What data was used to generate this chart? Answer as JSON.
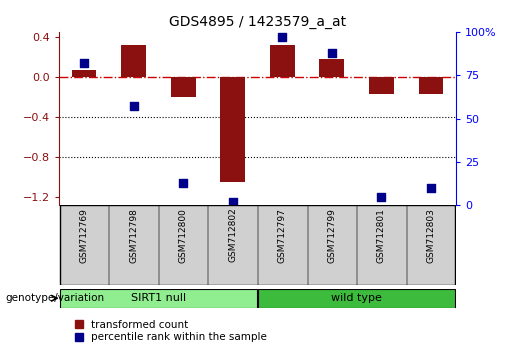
{
  "title": "GDS4895 / 1423579_a_at",
  "samples": [
    "GSM712769",
    "GSM712798",
    "GSM712800",
    "GSM712802",
    "GSM712797",
    "GSM712799",
    "GSM712801",
    "GSM712803"
  ],
  "red_values": [
    0.07,
    0.32,
    -0.2,
    -1.05,
    0.32,
    0.18,
    -0.17,
    -0.17
  ],
  "blue_values": [
    82,
    57,
    13,
    2,
    97,
    88,
    5,
    10
  ],
  "groups": [
    {
      "label": "SIRT1 null",
      "start": 0,
      "end": 4,
      "color": "#90ee90"
    },
    {
      "label": "wild type",
      "start": 4,
      "end": 8,
      "color": "#3dbb3d"
    }
  ],
  "ylim_left": [
    -1.28,
    0.45
  ],
  "ylim_right": [
    0,
    100
  ],
  "yticks_left": [
    0.4,
    0.0,
    -0.4,
    -0.8,
    -1.2
  ],
  "yticks_right": [
    100,
    75,
    50,
    25,
    0
  ],
  "red_color": "#8b1010",
  "blue_color": "#00008b",
  "hline_color": "#cc0000",
  "grid_color": "black",
  "bar_width": 0.5,
  "blue_marker_size": 36,
  "genotype_label": "genotype/variation",
  "legend_red": "transformed count",
  "legend_blue": "percentile rank within the sample",
  "background_color": "#ffffff",
  "plot_bg": "#ffffff",
  "label_box_color": "#d0d0d0",
  "label_box_edge": "#808080"
}
